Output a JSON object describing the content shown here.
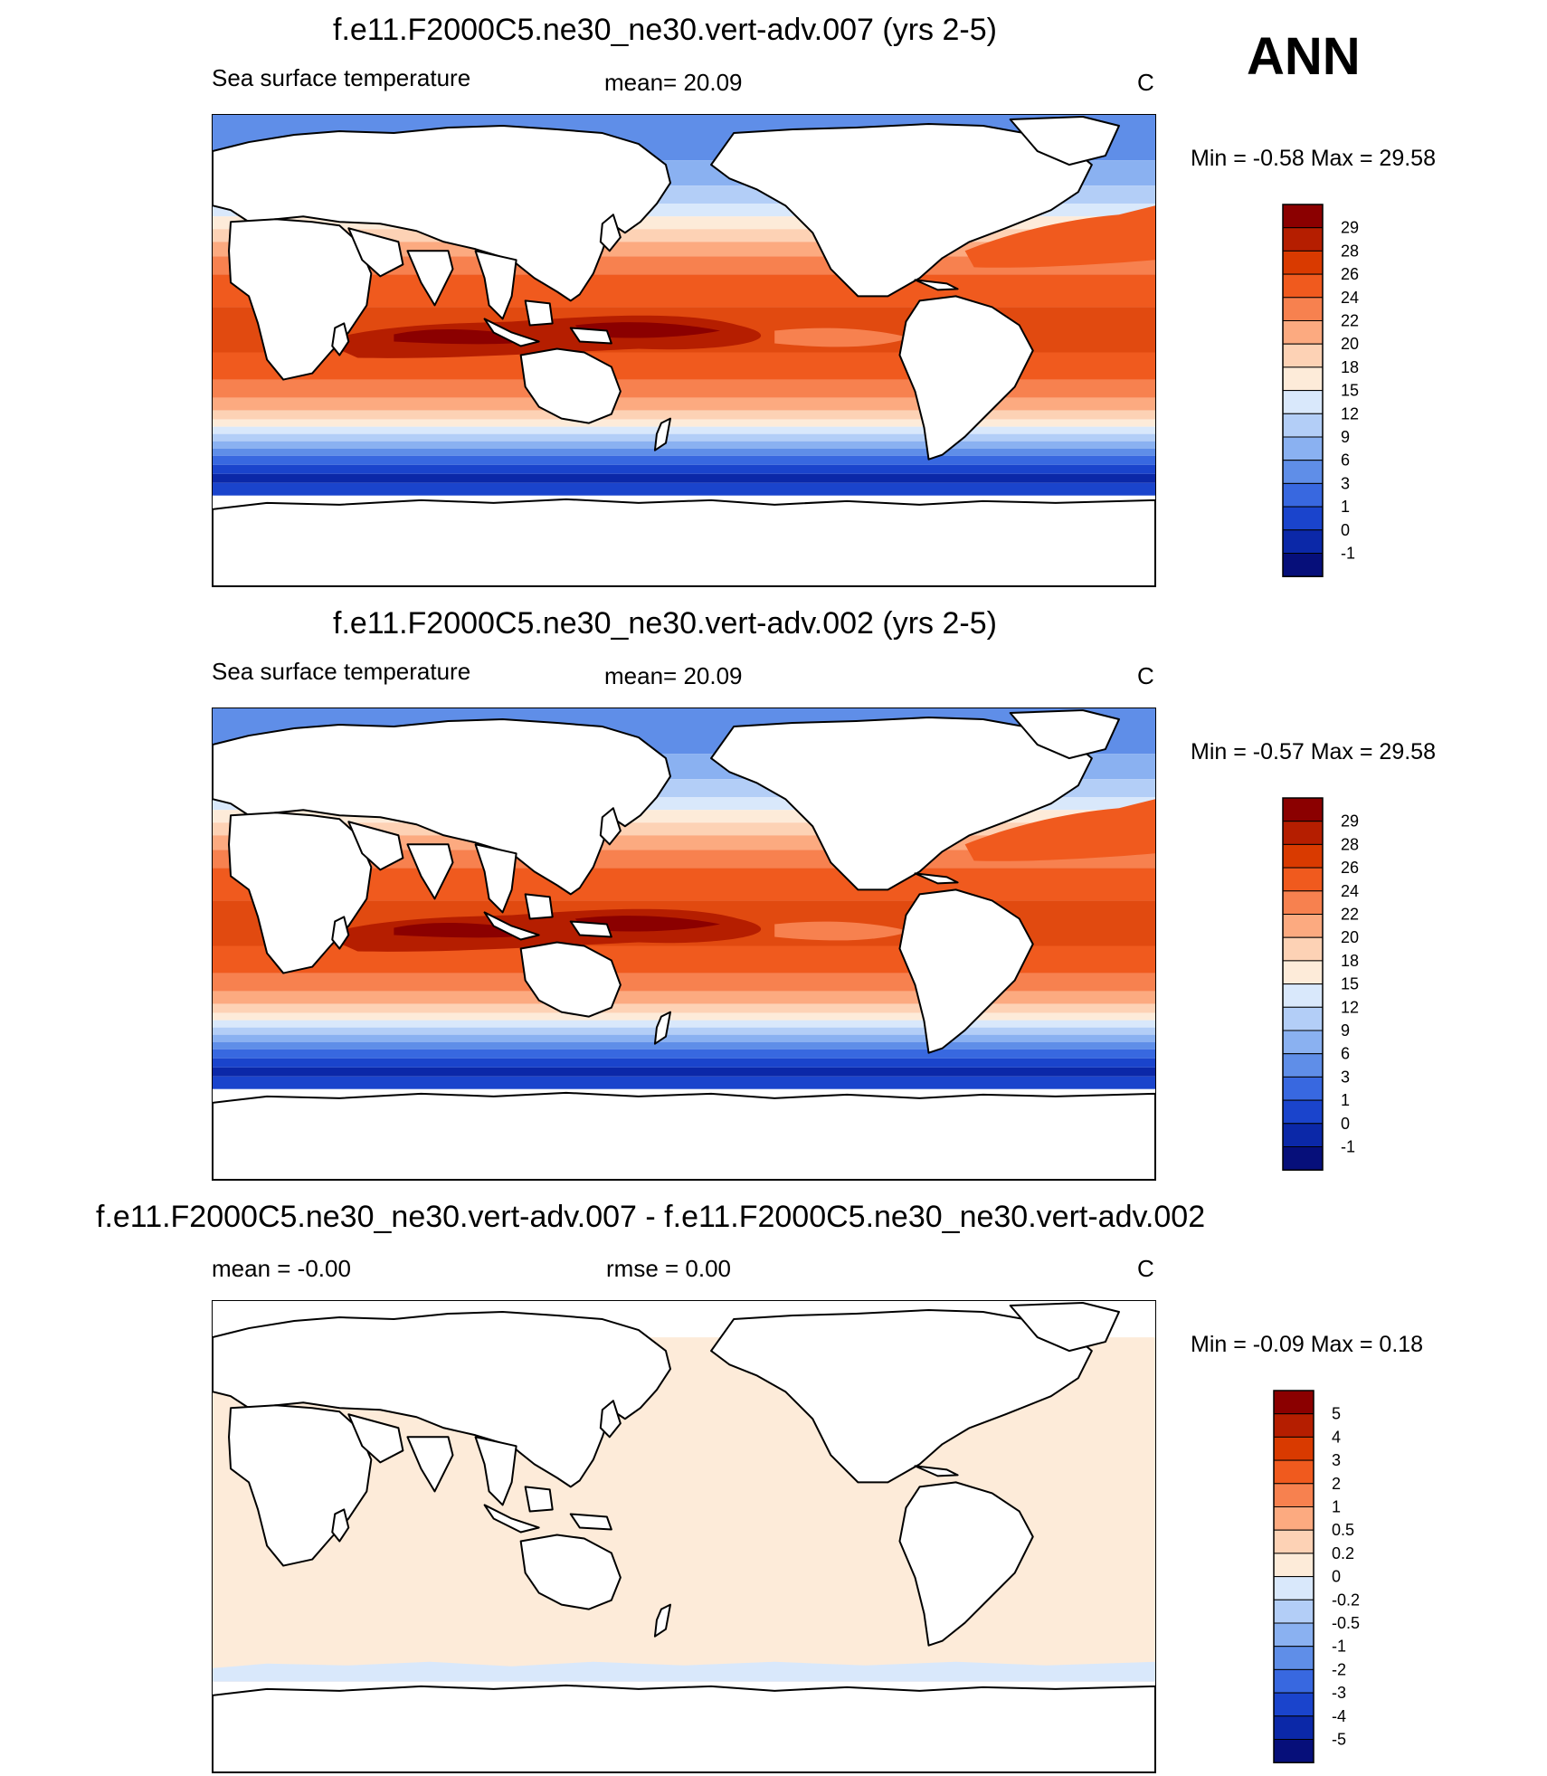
{
  "season": "ANN",
  "panels": [
    {
      "title": "f.e11.F2000C5.ne30_ne30.vert-adv.007 (yrs 2-5)",
      "left_label": "Sea surface temperature",
      "center_label": "mean=  20.09",
      "units": "C",
      "minmax": "Min =  -0.58 Max =  29.58",
      "variant": "field"
    },
    {
      "title": "f.e11.F2000C5.ne30_ne30.vert-adv.002 (yrs 2-5)",
      "left_label": "Sea surface temperature",
      "center_label": "mean=  20.09",
      "units": "C",
      "minmax": "Min =  -0.57 Max =  29.58",
      "variant": "field"
    },
    {
      "title": "f.e11.F2000C5.ne30_ne30.vert-adv.007 - f.e11.F2000C5.ne30_ne30.vert-adv.002",
      "left_label": "mean =  -0.00",
      "center_label": "rmse =   0.00",
      "units": "C",
      "minmax": "Min =  -0.09 Max =   0.18",
      "variant": "diff"
    }
  ],
  "colorbars": {
    "field": {
      "labels": [
        "29",
        "28",
        "26",
        "24",
        "22",
        "20",
        "18",
        "15",
        "12",
        "9",
        "6",
        "3",
        "1",
        "0",
        "-1"
      ],
      "colors": [
        "#8b0000",
        "#b51e00",
        "#d93a00",
        "#f05a1e",
        "#f7814f",
        "#fcaa80",
        "#fdd2b5",
        "#fdebd9",
        "#d9e8fb",
        "#b3cef7",
        "#8ab1f1",
        "#5f8ee8",
        "#3868e0",
        "#1a44cc",
        "#0b28a8",
        "#060f7a"
      ]
    },
    "diff": {
      "labels": [
        "5",
        "4",
        "3",
        "2",
        "1",
        "0.5",
        "0.2",
        "0",
        "-0.2",
        "-0.5",
        "-1",
        "-2",
        "-3",
        "-4",
        "-5"
      ],
      "colors": [
        "#8b0000",
        "#b51e00",
        "#d93a00",
        "#f05a1e",
        "#f7814f",
        "#fcaa80",
        "#fdd2b5",
        "#fdebd9",
        "#d9e8fb",
        "#b3cef7",
        "#8ab1f1",
        "#5f8ee8",
        "#3868e0",
        "#1a44cc",
        "#0b28a8",
        "#060f7a"
      ]
    }
  }
}
